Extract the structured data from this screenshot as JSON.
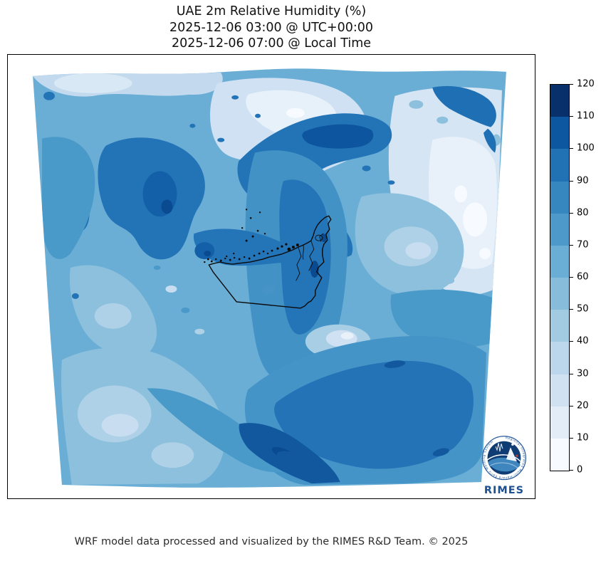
{
  "figure": {
    "title": "UAE 2m Relative Humidity (%)",
    "subtitle_utc": "2025-12-06 03:00 @ UTC+00:00",
    "subtitle_local": "2025-12-06 07:00 @ Local Time",
    "footer": "WRF model data processed and visualized by the RIMES R&D Team. © 2025"
  },
  "colorbar": {
    "min": 0,
    "max": 120,
    "tick_step": 10,
    "ticks": [
      0,
      10,
      20,
      30,
      40,
      50,
      60,
      70,
      80,
      90,
      100,
      110,
      120
    ],
    "colormap": "Blues",
    "segments": [
      {
        "from": 0,
        "to": 10,
        "color": "#f7fbff"
      },
      {
        "from": 10,
        "to": 20,
        "color": "#e2edf8"
      },
      {
        "from": 20,
        "to": 30,
        "color": "#d0e1f2"
      },
      {
        "from": 30,
        "to": 40,
        "color": "#bcd7eb"
      },
      {
        "from": 40,
        "to": 50,
        "color": "#a2cbe2"
      },
      {
        "from": 50,
        "to": 60,
        "color": "#87bddb"
      },
      {
        "from": 60,
        "to": 70,
        "color": "#6aaed6"
      },
      {
        "from": 70,
        "to": 80,
        "color": "#4d99ca"
      },
      {
        "from": 80,
        "to": 90,
        "color": "#3686c0"
      },
      {
        "from": 90,
        "to": 100,
        "color": "#2171b5"
      },
      {
        "from": 100,
        "to": 110,
        "color": "#0d57a1"
      },
      {
        "from": 110,
        "to": 120,
        "color": "#08306b"
      }
    ]
  },
  "map": {
    "outline_country": "United Arab Emirates",
    "logo": {
      "text": "RIMES",
      "ring_text": "Regional Integrated Multi-Hazard Early Warning System"
    }
  },
  "chart_data": {
    "type": "heatmap",
    "title": "UAE 2m Relative Humidity (%)",
    "time_utc": "2025-12-06 03:00 @ UTC+00:00",
    "time_local": "2025-12-06 07:00 @ Local Time",
    "variable": "2 m relative humidity",
    "units": "%",
    "colormap": "Blues",
    "levels": [
      0,
      10,
      20,
      30,
      40,
      50,
      60,
      70,
      80,
      90,
      100,
      110,
      120
    ],
    "legend_position": "right",
    "grid": false,
    "regions": [
      {
        "area": "upper-right interior (far northeast of domain)",
        "approx_rh_percent": 30
      },
      {
        "area": "patches upper-right lightest spots",
        "approx_rh_percent": 20
      },
      {
        "area": "northern mountain band (top-center dark streaks)",
        "approx_rh_percent": 90
      },
      {
        "area": "top-left dark blobs",
        "approx_rh_percent": 85
      },
      {
        "area": "central gulf waters",
        "approx_rh_percent": 70
      },
      {
        "area": "Strait of Hormuz dark band northwest of Musandam",
        "approx_rh_percent": 90
      },
      {
        "area": "UAE coastal strip (Abu Dhabi - Dubai)",
        "approx_rh_percent": 80
      },
      {
        "area": "UAE interior southwest desert",
        "approx_rh_percent": 60
      },
      {
        "area": "east of Musandam (Gulf of Oman light patch)",
        "approx_rh_percent": 50
      },
      {
        "area": "southeast quadrant large dark mass",
        "approx_rh_percent": 80
      },
      {
        "area": "bottom-center dark ridge",
        "approx_rh_percent": 95
      },
      {
        "area": "bottom-left desert",
        "approx_rh_percent": 55
      }
    ]
  }
}
